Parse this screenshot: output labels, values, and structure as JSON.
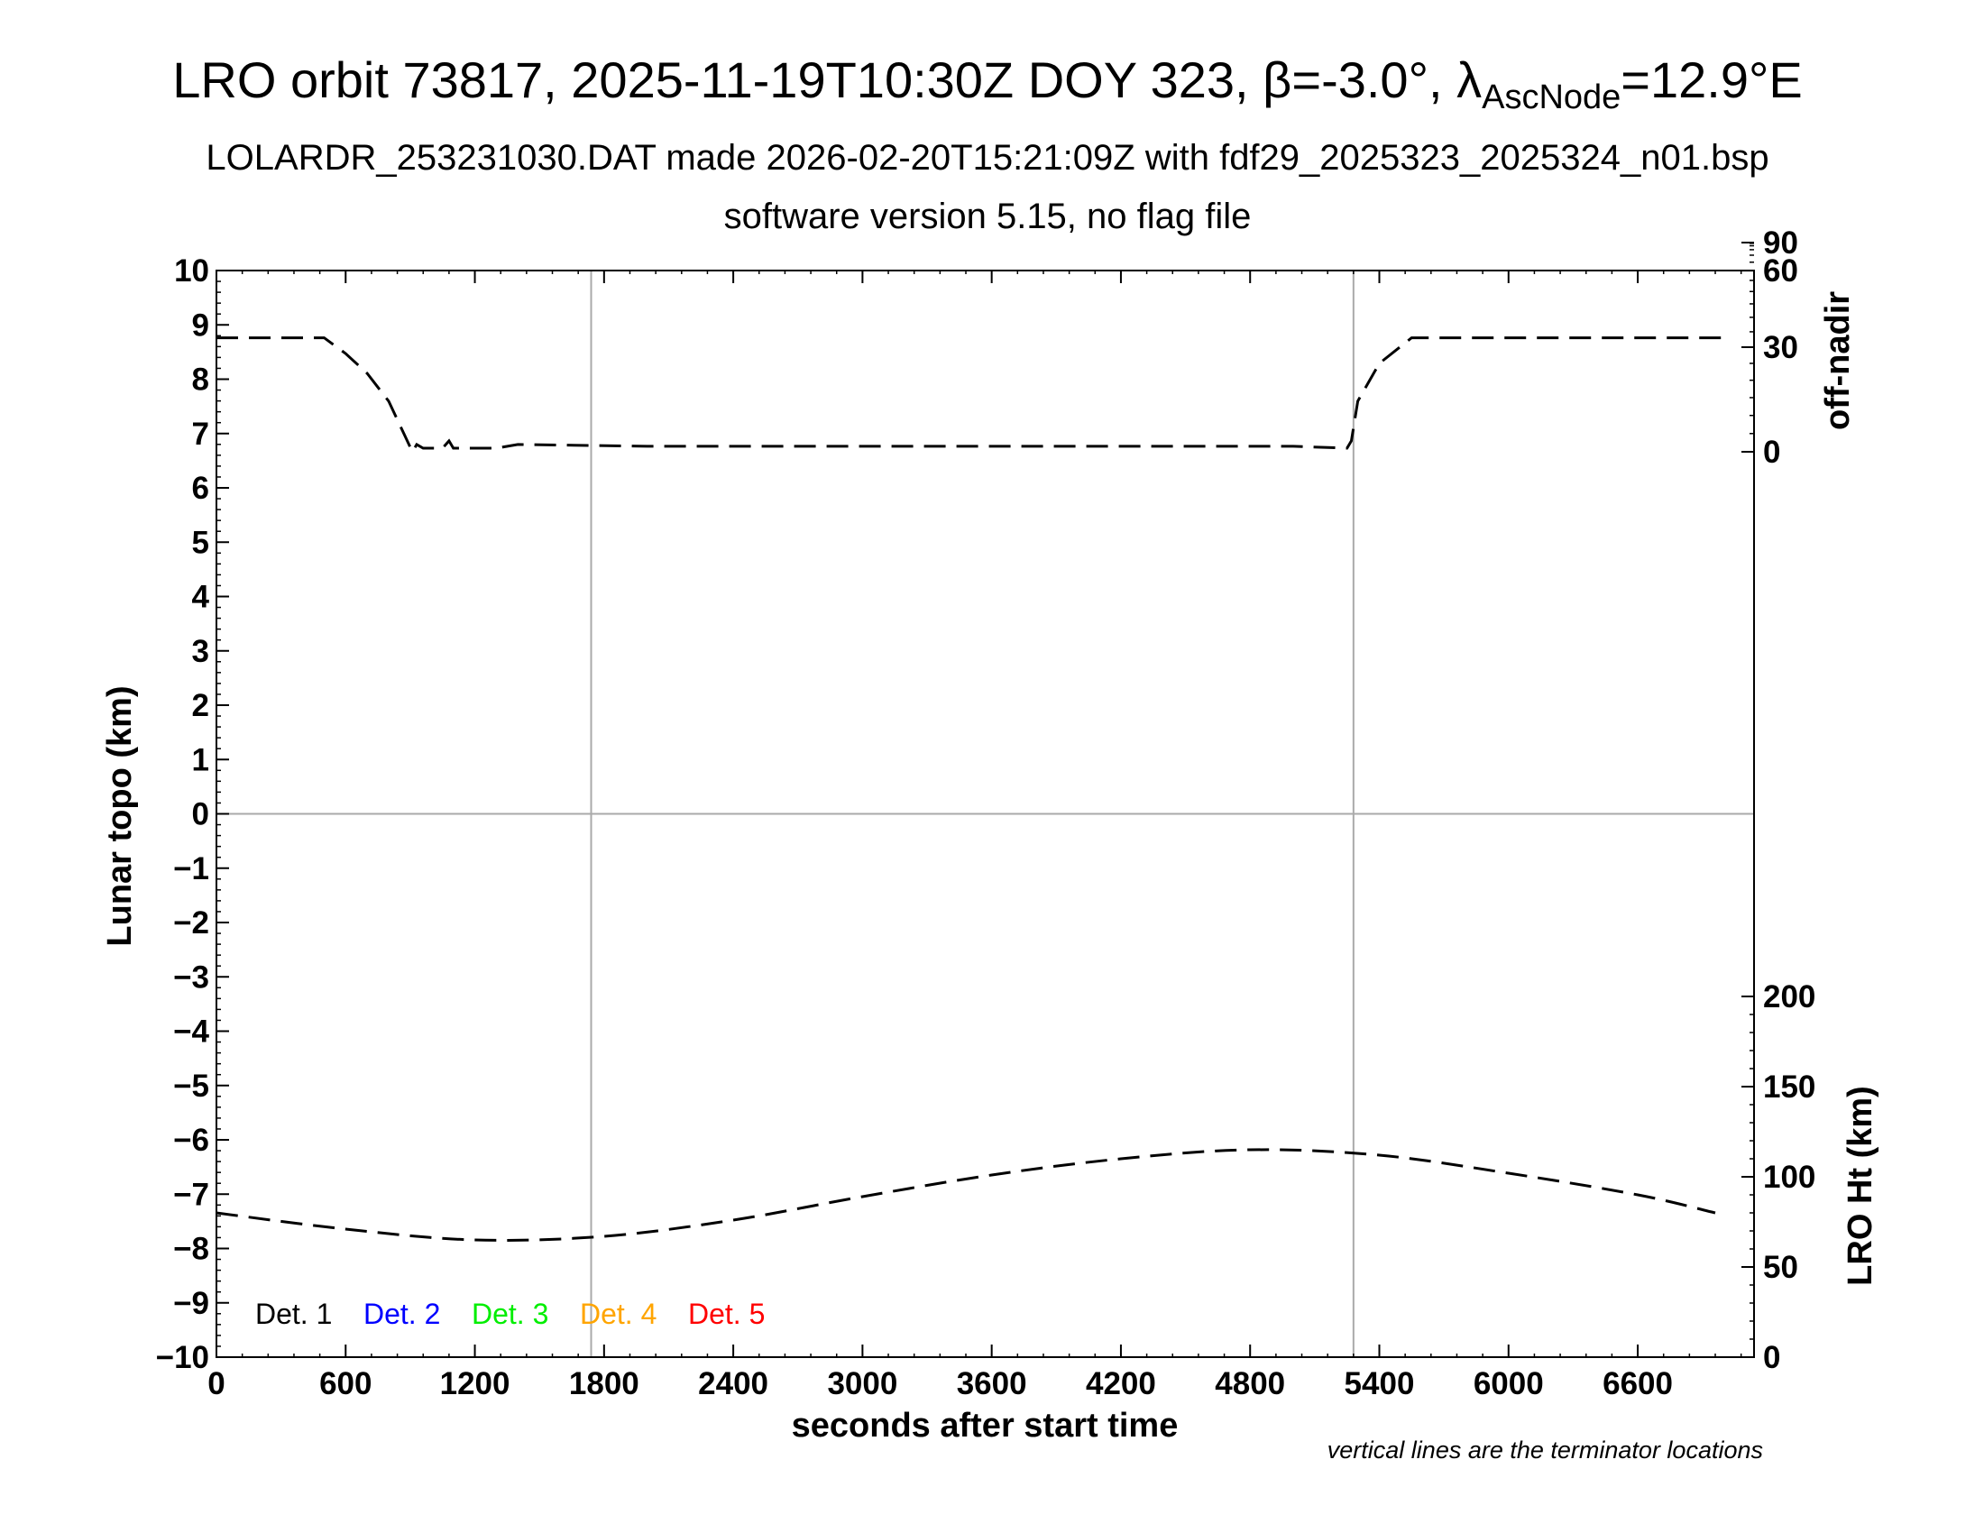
{
  "title": {
    "prefix": "LRO orbit 73817, 2025-11-19T10:30Z DOY 323, ",
    "beta_symbol": "β",
    "beta_value": "=-3.0°, ",
    "lambda_symbol": "λ",
    "lambda_sub": "AscNode",
    "lambda_value": "=12.9°E"
  },
  "subtitle1": "LOLARDR_253231030.DAT made 2026-02-20T15:21:09Z with fdf29_2025323_2025324_n01.bsp",
  "subtitle2": "software version 5.15, no flag file",
  "footnote": "vertical lines are the terminator locations",
  "colors": {
    "det1": "#000000",
    "det2": "#0000ff",
    "det3": "#00ee00",
    "det4": "#ffa500",
    "det5": "#ff0000",
    "grid": "#aaaaaa"
  },
  "chart_data": {
    "type": "line",
    "xlabel": "seconds after start time",
    "ylabel_left": "Lunar topo (km)",
    "ylabel_right_top": "off-nadir",
    "ylabel_right_bottom": "LRO Ht (km)",
    "xlim": [
      0,
      7140
    ],
    "ylim_left": [
      -10,
      10
    ],
    "x_ticks": [
      "0",
      "600",
      "1200",
      "1800",
      "2400",
      "3000",
      "3600",
      "4200",
      "4800",
      "5400",
      "6000",
      "6600"
    ],
    "y_ticks_left": [
      "10",
      "9",
      "8",
      "7",
      "6",
      "5",
      "4",
      "3",
      "2",
      "1",
      "0",
      "−1",
      "−2",
      "−3",
      "−4",
      "−5",
      "−6",
      "−7",
      "−8",
      "−9",
      "−10"
    ],
    "y_ticks_right_top": [
      "90",
      "60",
      "30",
      "0"
    ],
    "y_ticks_right_bottom": [
      "200",
      "150",
      "100",
      "50",
      "0"
    ],
    "terminator_lines_x": [
      1740,
      5280
    ],
    "legend": [
      "Det. 1",
      "Det. 2",
      "Det. 3",
      "Det. 4",
      "Det. 5"
    ],
    "series": [
      {
        "name": "off-nadir",
        "units": "deg",
        "x": [
          0,
          500,
          600,
          700,
          800,
          870,
          910,
          930,
          960,
          1050,
          1080,
          1100,
          1300,
          1400,
          2000,
          3000,
          4000,
          5000,
          5250,
          5270,
          5300,
          5400,
          5550,
          6000,
          7000
        ],
        "y": [
          33,
          33,
          28,
          22,
          14,
          5,
          0,
          2,
          1,
          1,
          3,
          1,
          1,
          2,
          1.5,
          1.5,
          1.5,
          1.5,
          1,
          3,
          14,
          25,
          33,
          33,
          33
        ]
      },
      {
        "name": "LRO Ht",
        "units": "km",
        "x": [
          0,
          600,
          1200,
          1800,
          2400,
          3000,
          3600,
          4200,
          4800,
          5400,
          6000,
          6600,
          6960
        ],
        "y": [
          80,
          71,
          65,
          67,
          76,
          89,
          101,
          110,
          115,
          112,
          102,
          90,
          80
        ]
      }
    ]
  }
}
